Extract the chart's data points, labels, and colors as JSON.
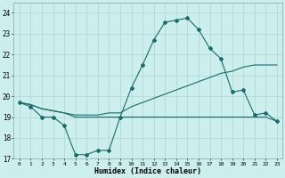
{
  "xlabel": "Humidex (Indice chaleur)",
  "bg_color": "#cceeed",
  "grid_color": "#aad8d8",
  "line_color": "#1a6b6b",
  "x_values": [
    0,
    1,
    2,
    3,
    4,
    5,
    6,
    7,
    8,
    9,
    10,
    11,
    12,
    13,
    14,
    15,
    16,
    17,
    18,
    19,
    20,
    21,
    22,
    23
  ],
  "line_main": [
    19.7,
    19.5,
    19.0,
    19.0,
    18.6,
    17.2,
    17.2,
    17.4,
    17.4,
    19.0,
    20.4,
    21.5,
    22.7,
    23.55,
    23.65,
    23.75,
    23.2,
    22.3,
    21.8,
    20.2,
    20.3,
    19.1,
    19.2,
    18.8
  ],
  "line_upper": [
    19.7,
    19.6,
    19.4,
    19.3,
    19.2,
    19.1,
    19.1,
    19.1,
    19.2,
    19.2,
    19.5,
    19.7,
    19.9,
    20.1,
    20.3,
    20.5,
    20.7,
    20.9,
    21.1,
    21.2,
    21.4,
    21.5,
    21.5,
    21.5
  ],
  "line_lower": [
    19.7,
    19.6,
    19.4,
    19.3,
    19.2,
    19.0,
    19.0,
    19.0,
    19.0,
    19.0,
    19.0,
    19.0,
    19.0,
    19.0,
    19.0,
    19.0,
    19.0,
    19.0,
    19.0,
    19.0,
    19.0,
    19.0,
    19.0,
    18.8
  ],
  "ylim": [
    17.0,
    24.5
  ],
  "yticks": [
    17,
    18,
    19,
    20,
    21,
    22,
    23,
    24
  ],
  "xticks": [
    0,
    1,
    2,
    3,
    4,
    5,
    6,
    7,
    8,
    9,
    10,
    11,
    12,
    13,
    14,
    15,
    16,
    17,
    18,
    19,
    20,
    21,
    22,
    23
  ]
}
